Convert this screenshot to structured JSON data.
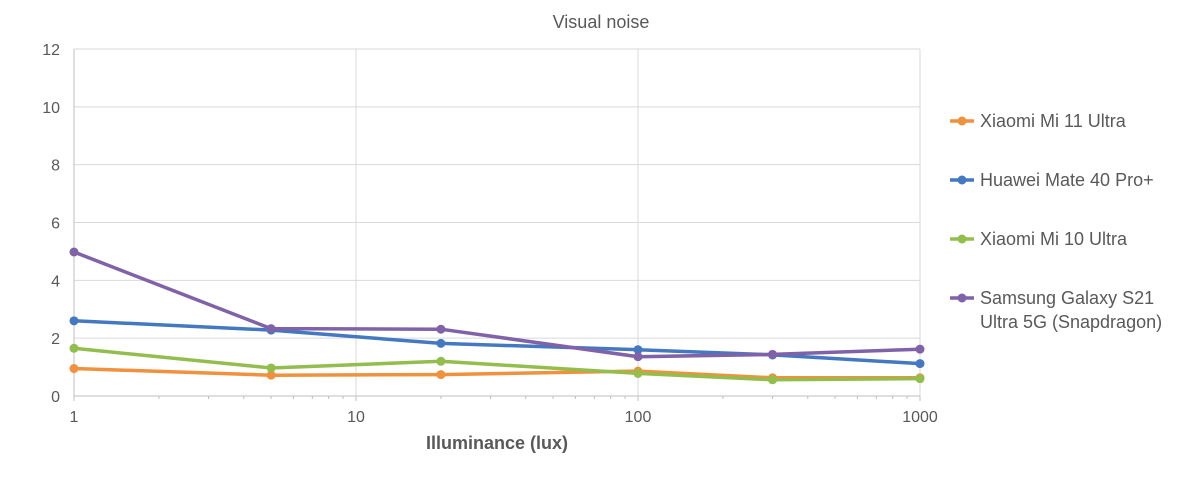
{
  "chart_data": {
    "type": "line",
    "title": "Visual noise",
    "xlabel": "Illuminance (lux)",
    "ylabel": "",
    "x_scale": "log",
    "xlim": [
      1,
      1000
    ],
    "ylim": [
      0,
      12
    ],
    "x_ticks": [
      "1",
      "10",
      "100",
      "1000"
    ],
    "y_ticks": [
      "0",
      "2",
      "4",
      "6",
      "8",
      "10",
      "12"
    ],
    "grid": true,
    "legend_position": "right",
    "x": [
      1,
      5,
      20,
      100,
      300,
      1000
    ],
    "series": [
      {
        "name": "Xiaomi Mi 11 Ultra",
        "color": "#f0913d",
        "values": [
          0.95,
          0.72,
          0.74,
          0.86,
          0.63,
          0.63
        ]
      },
      {
        "name": "Huawei Mate 40 Pro+",
        "color": "#4478c0",
        "values": [
          2.6,
          2.28,
          1.82,
          1.6,
          1.42,
          1.12
        ]
      },
      {
        "name": "Xiaomi Mi 10 Ultra",
        "color": "#93bd4d",
        "values": [
          1.65,
          0.97,
          1.2,
          0.78,
          0.56,
          0.6
        ]
      },
      {
        "name": "Samsung Galaxy S21 Ultra 5G (Snapdragon)",
        "name_lines": [
          "Samsung Galaxy S21",
          "Ultra 5G (Snapdragon)"
        ],
        "color": "#8062a8",
        "values": [
          4.98,
          2.33,
          2.31,
          1.36,
          1.44,
          1.62
        ]
      }
    ]
  }
}
